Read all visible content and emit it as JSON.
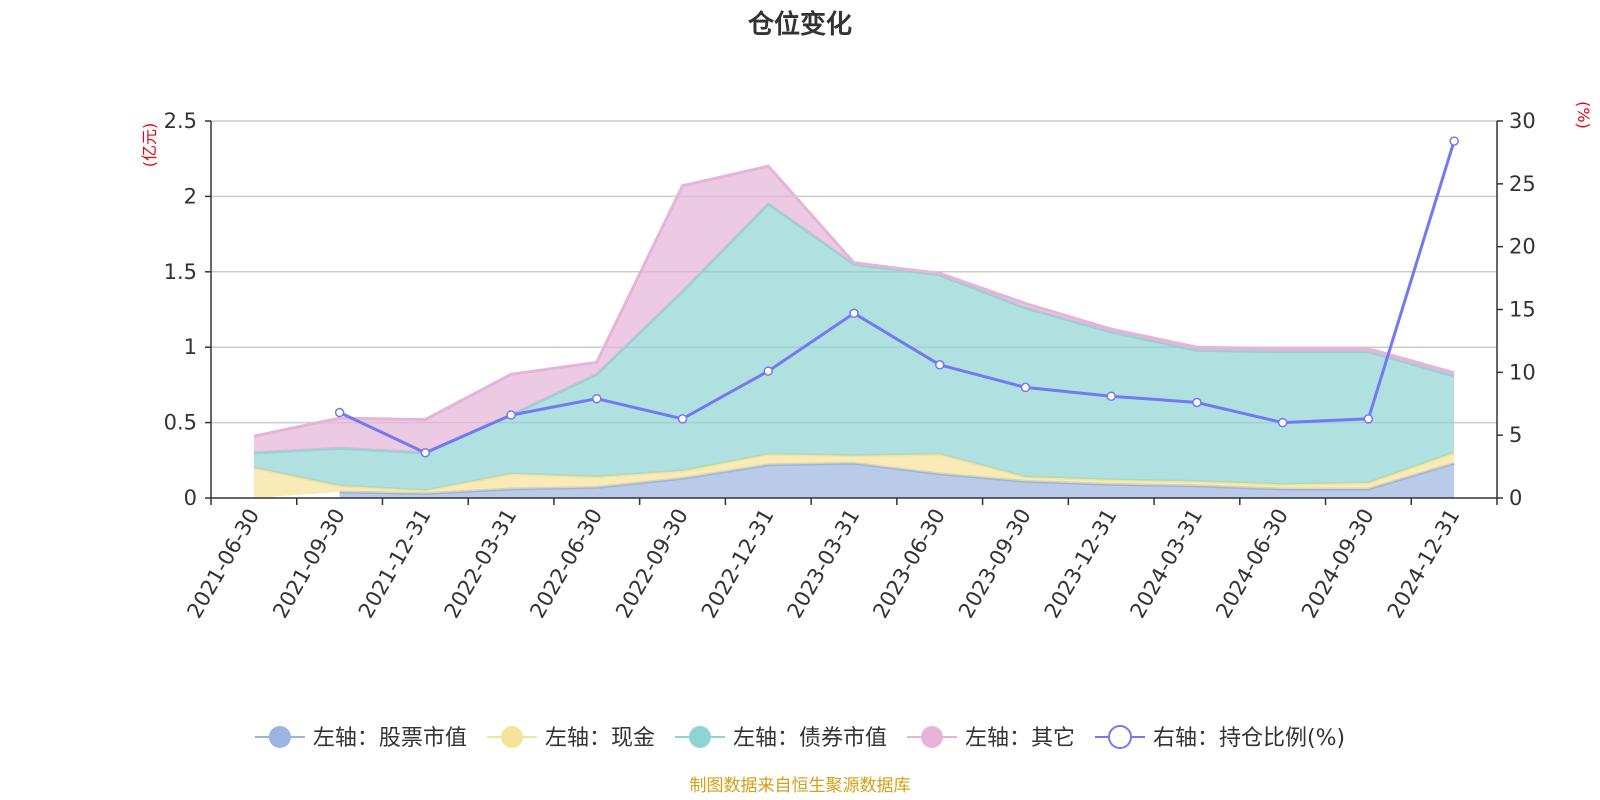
{
  "chart_data": {
    "type": "area",
    "title": "仓位变化",
    "left_unit": "(亿元)",
    "right_unit": "(%)",
    "categories": [
      "2021-06-30",
      "2021-09-30",
      "2021-12-31",
      "2022-03-31",
      "2022-06-30",
      "2022-09-30",
      "2022-12-31",
      "2023-03-31",
      "2023-06-30",
      "2023-09-30",
      "2023-12-31",
      "2024-03-31",
      "2024-06-30",
      "2024-09-30",
      "2024-12-31"
    ],
    "left_axis": {
      "min": 0,
      "max": 2.5,
      "ticks": [
        "0",
        "0.5",
        "1",
        "1.5",
        "2",
        "2.5"
      ]
    },
    "right_axis": {
      "min": 0,
      "max": 30,
      "ticks": [
        "0",
        "5",
        "10",
        "15",
        "20",
        "25",
        "30"
      ]
    },
    "series": [
      {
        "name": "左轴：股票市值",
        "axis": "left",
        "kind": "stacked-area",
        "color": "#9bb5e0",
        "values": [
          null,
          0.04,
          0.03,
          0.06,
          0.07,
          0.13,
          0.22,
          0.23,
          0.16,
          0.11,
          0.09,
          0.08,
          0.06,
          0.06,
          0.23
        ]
      },
      {
        "name": "左轴：现金",
        "axis": "left",
        "kind": "stacked-area",
        "color": "#f5e39a",
        "values": [
          0.2,
          0.04,
          0.02,
          0.1,
          0.07,
          0.05,
          0.07,
          0.05,
          0.13,
          0.03,
          0.03,
          0.03,
          0.03,
          0.04,
          0.07
        ]
      },
      {
        "name": "左轴：债券市值",
        "axis": "left",
        "kind": "stacked-area",
        "color": "#8fd3d3",
        "values": [
          0.1,
          0.25,
          0.25,
          0.39,
          0.68,
          1.19,
          1.66,
          1.27,
          1.19,
          1.12,
          0.98,
          0.87,
          0.88,
          0.87,
          0.51
        ]
      },
      {
        "name": "左轴：其它",
        "axis": "left",
        "kind": "stacked-area",
        "color": "#e6b3d9",
        "values": [
          0.11,
          0.2,
          0.22,
          0.27,
          0.08,
          0.7,
          0.25,
          0.01,
          0.01,
          0.03,
          0.02,
          0.02,
          0.02,
          0.02,
          0.02
        ]
      },
      {
        "name": "右轴：持仓比例(%)",
        "axis": "right",
        "kind": "line",
        "color": "#7479f2",
        "values": [
          null,
          6.8,
          3.6,
          6.6,
          7.9,
          6.3,
          10.1,
          14.7,
          10.6,
          8.8,
          8.1,
          7.6,
          6.0,
          6.3,
          28.4
        ]
      }
    ],
    "legend_position": "bottom",
    "grid": true
  },
  "footer": {
    "text": "制图数据来自恒生聚源数据库",
    "color": "#d4a017"
  },
  "colors": {
    "unit": "#e60012",
    "axis": "#333333",
    "grid": "#cccccc"
  }
}
